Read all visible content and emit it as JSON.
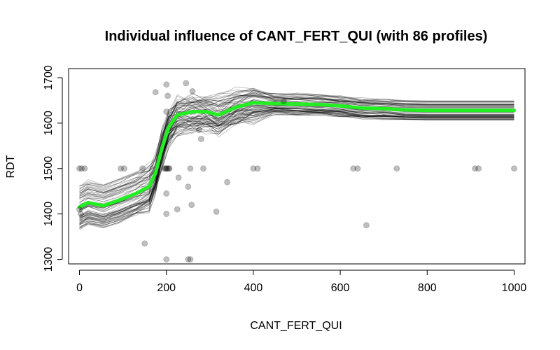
{
  "chart_data": {
    "type": "line",
    "title": "Individual influence of CANT_FERT_QUI (with 86 profiles)",
    "xlabel": "CANT_FERT_QUI",
    "ylabel": "RDT",
    "xlim": [
      -25,
      1025
    ],
    "ylim": [
      1290,
      1720
    ],
    "x_ticks": [
      0,
      200,
      400,
      600,
      800,
      1000
    ],
    "y_ticks": [
      1300,
      1400,
      1500,
      1600,
      1700
    ],
    "grid": false,
    "profile_count": 86,
    "colors": {
      "profiles": "#000000",
      "mean": "#22ee22",
      "points": "#000000"
    },
    "mean_profile": {
      "x": [
        0,
        20,
        55,
        90,
        130,
        160,
        175,
        190,
        205,
        225,
        260,
        290,
        320,
        360,
        400,
        450,
        500,
        550,
        600,
        650,
        700,
        750,
        800,
        900,
        1000
      ],
      "y": [
        1415,
        1425,
        1418,
        1430,
        1445,
        1460,
        1490,
        1545,
        1590,
        1618,
        1625,
        1625,
        1618,
        1635,
        1645,
        1643,
        1642,
        1641,
        1638,
        1633,
        1632,
        1629,
        1628,
        1628,
        1628
      ]
    },
    "observations": [
      {
        "x": 0,
        "y": 1500
      },
      {
        "x": 5,
        "y": 1500
      },
      {
        "x": 12,
        "y": 1500
      },
      {
        "x": 0,
        "y": 1410
      },
      {
        "x": 3,
        "y": 1400
      },
      {
        "x": 95,
        "y": 1500
      },
      {
        "x": 103,
        "y": 1500
      },
      {
        "x": 145,
        "y": 1500
      },
      {
        "x": 150,
        "y": 1335
      },
      {
        "x": 175,
        "y": 1668
      },
      {
        "x": 195,
        "y": 1500
      },
      {
        "x": 198,
        "y": 1500
      },
      {
        "x": 200,
        "y": 1500
      },
      {
        "x": 202,
        "y": 1500
      },
      {
        "x": 205,
        "y": 1500
      },
      {
        "x": 207,
        "y": 1500
      },
      {
        "x": 200,
        "y": 1685
      },
      {
        "x": 203,
        "y": 1660
      },
      {
        "x": 200,
        "y": 1625
      },
      {
        "x": 200,
        "y": 1445
      },
      {
        "x": 200,
        "y": 1400
      },
      {
        "x": 200,
        "y": 1300
      },
      {
        "x": 225,
        "y": 1410
      },
      {
        "x": 228,
        "y": 1480
      },
      {
        "x": 245,
        "y": 1688
      },
      {
        "x": 250,
        "y": 1300
      },
      {
        "x": 255,
        "y": 1300
      },
      {
        "x": 250,
        "y": 1460
      },
      {
        "x": 255,
        "y": 1500
      },
      {
        "x": 258,
        "y": 1420
      },
      {
        "x": 260,
        "y": 1670
      },
      {
        "x": 275,
        "y": 1585
      },
      {
        "x": 280,
        "y": 1565
      },
      {
        "x": 285,
        "y": 1500
      },
      {
        "x": 315,
        "y": 1405
      },
      {
        "x": 340,
        "y": 1470
      },
      {
        "x": 400,
        "y": 1500
      },
      {
        "x": 410,
        "y": 1500
      },
      {
        "x": 470,
        "y": 1648
      },
      {
        "x": 630,
        "y": 1500
      },
      {
        "x": 640,
        "y": 1500
      },
      {
        "x": 660,
        "y": 1375
      },
      {
        "x": 730,
        "y": 1500
      },
      {
        "x": 910,
        "y": 1500
      },
      {
        "x": 918,
        "y": 1500
      },
      {
        "x": 1000,
        "y": 1500
      }
    ]
  }
}
